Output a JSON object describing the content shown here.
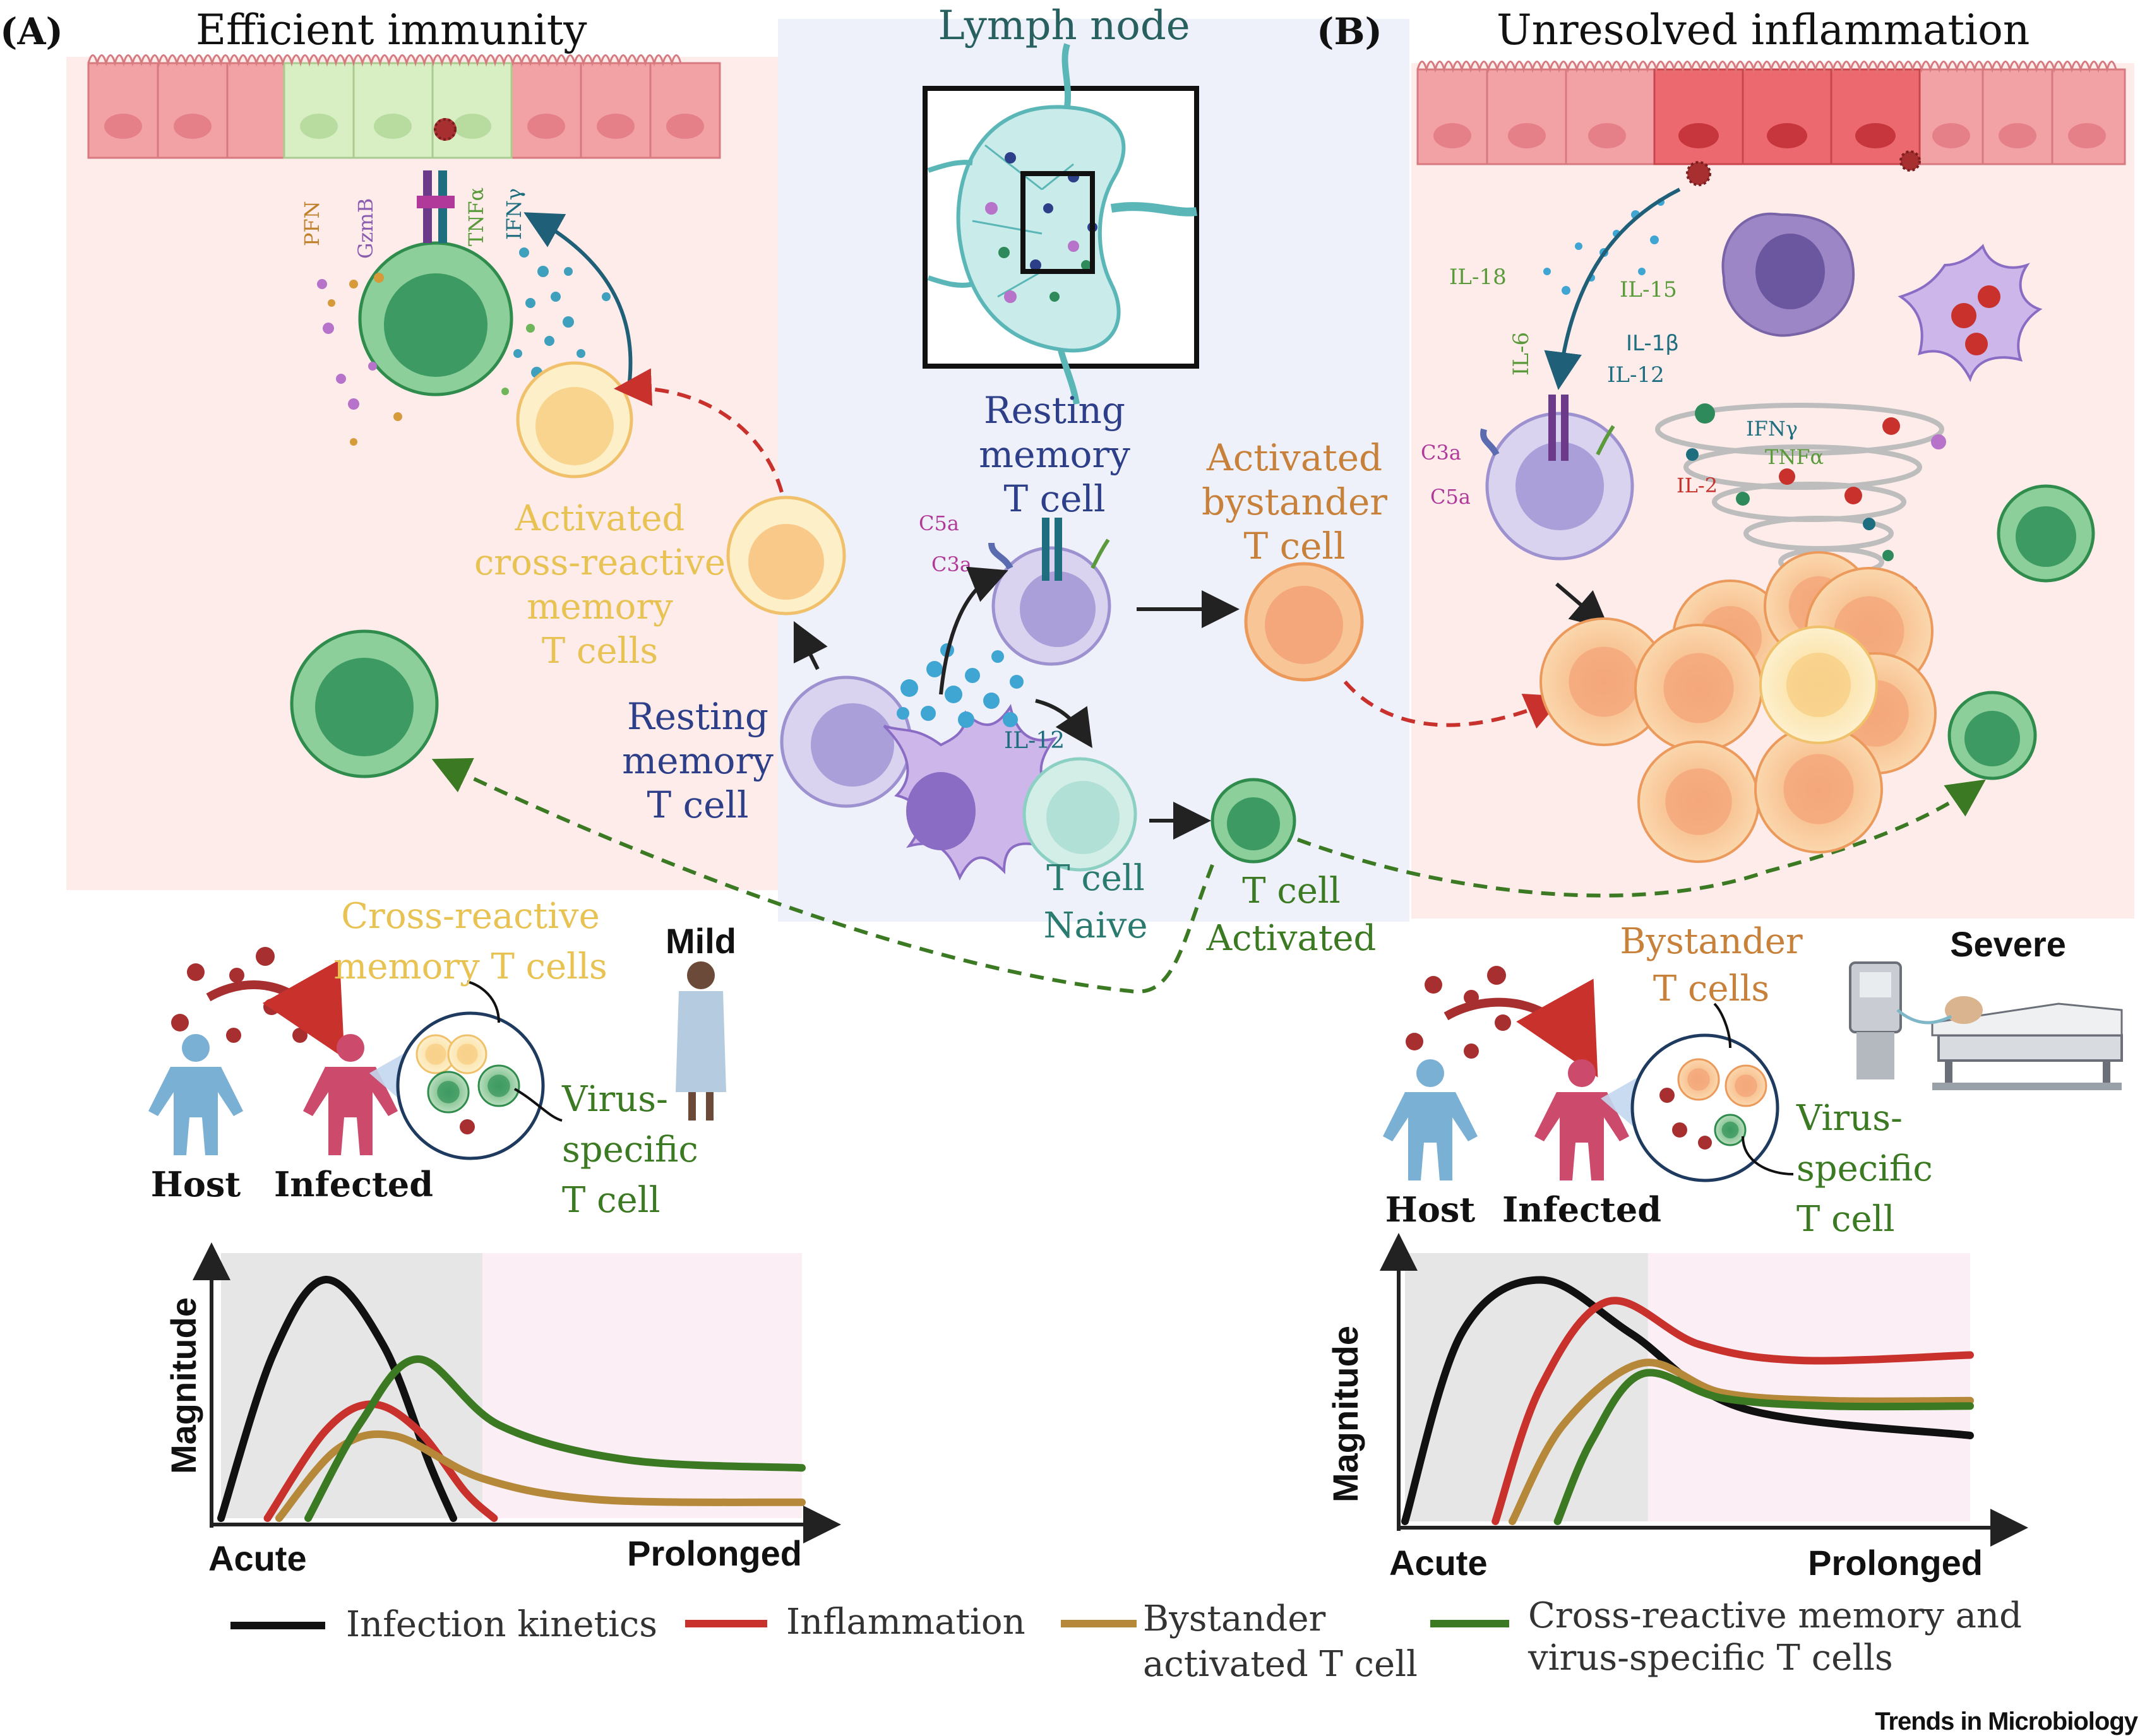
{
  "panels": {
    "a": {
      "letter": "(A)",
      "title": "Efficient immunity",
      "severity": "Mild"
    },
    "b": {
      "letter": "(B)",
      "title": "Unresolved  inflammation",
      "severity": "Severe"
    },
    "lymph_node": "Lymph node"
  },
  "cells": {
    "resting_memory_center": [
      "Resting",
      "memory",
      "T cell"
    ],
    "resting_memory_left": [
      "Resting",
      "memory",
      "T cell"
    ],
    "activated_bystander": [
      "Activated",
      "bystander",
      "T cell"
    ],
    "cross_reactive": [
      "Activated",
      "cross-reactive",
      "memory",
      "T cells"
    ],
    "naive": [
      "T cell",
      "Naive"
    ],
    "activated": [
      "T cell",
      "Activated"
    ]
  },
  "molecules": {
    "c5a": "C5a",
    "c3a": "C3a",
    "il12": "IL-12",
    "pfn": "PFN",
    "gzmb": "GzmB",
    "tnfa": "TNFα",
    "ifng": "IFNγ",
    "il18": "IL-18",
    "il15": "IL-15",
    "il6": "IL-6",
    "il1b": "IL-1β",
    "il12b": "IL-12",
    "ifng_b": "IFNγ",
    "tnfa_b": "TNFα",
    "il2": "IL-2",
    "c3a_b": "C3a",
    "c5a_b": "C5a"
  },
  "bottom_a": {
    "cross_reactive": [
      "Cross-reactive",
      "memory T cells"
    ],
    "virus_specific": [
      "Virus-",
      "specific",
      "T cell"
    ],
    "host": "Host",
    "infected": "Infected"
  },
  "bottom_b": {
    "bystander": [
      "Bystander",
      "T cells"
    ],
    "virus_specific": [
      "Virus-",
      "specific",
      "T cell"
    ],
    "host": "Host",
    "infected": "Infected"
  },
  "chart_data": [
    {
      "type": "line",
      "panel": "A",
      "ylabel": "Magnitude",
      "x_start_label": "Acute",
      "x_end_label": "Prolonged",
      "xlim": [
        0,
        10
      ],
      "ylim": [
        0,
        10
      ],
      "phases": [
        {
          "name": "acute",
          "range": [
            0,
            4.5
          ],
          "color": "#e6e6e6"
        },
        {
          "name": "prolonged",
          "range": [
            4.5,
            10
          ],
          "color": "#fceef5"
        }
      ],
      "series": [
        {
          "name": "Infection kinetics",
          "color": "#111111",
          "x": [
            0,
            0.9,
            1.8,
            2.8,
            3.6,
            4.0
          ],
          "y": [
            0,
            6.2,
            9.0,
            6.5,
            2.0,
            0
          ]
        },
        {
          "name": "Inflammation",
          "color": "#c8312c",
          "x": [
            0.8,
            1.8,
            2.6,
            3.4,
            4.2,
            4.7
          ],
          "y": [
            0,
            3.3,
            4.3,
            3.3,
            1.0,
            0
          ]
        },
        {
          "name": "Bystander activated T cell",
          "color": "#b5883a",
          "x": [
            1.0,
            2.0,
            3.0,
            4.5,
            6.5,
            10.0
          ],
          "y": [
            0,
            2.6,
            3.1,
            1.5,
            0.7,
            0.6
          ]
        },
        {
          "name": "Cross-reactive memory and virus-specific T cells",
          "color": "#3b7a22",
          "x": [
            1.5,
            2.4,
            3.4,
            4.8,
            7.0,
            10.0
          ],
          "y": [
            0,
            3.6,
            6.0,
            3.5,
            2.2,
            1.9
          ]
        }
      ]
    },
    {
      "type": "line",
      "panel": "B",
      "ylabel": "Magnitude",
      "x_start_label": "Acute",
      "x_end_label": "Prolonged",
      "xlim": [
        0,
        10
      ],
      "ylim": [
        0,
        10
      ],
      "phases": [
        {
          "name": "acute",
          "range": [
            0,
            4.3
          ],
          "color": "#e6e6e6"
        },
        {
          "name": "prolonged",
          "range": [
            4.3,
            10
          ],
          "color": "#fceef5"
        }
      ],
      "series": [
        {
          "name": "Infection kinetics",
          "color": "#111111",
          "x": [
            0,
            1.0,
            2.4,
            4.0,
            6.0,
            10.0
          ],
          "y": [
            0,
            7.0,
            9.0,
            7.0,
            4.2,
            3.2
          ]
        },
        {
          "name": "Inflammation",
          "color": "#c8312c",
          "x": [
            1.6,
            2.4,
            3.6,
            5.2,
            7.0,
            10.0
          ],
          "y": [
            0,
            5.0,
            8.2,
            6.6,
            6.0,
            6.2
          ]
        },
        {
          "name": "Bystander activated T cell",
          "color": "#b5883a",
          "x": [
            1.9,
            2.8,
            4.2,
            5.6,
            7.5,
            10.0
          ],
          "y": [
            0,
            3.6,
            5.9,
            4.8,
            4.5,
            4.5
          ]
        },
        {
          "name": "Cross-reactive memory and virus-specific T cells",
          "color": "#3b7a22",
          "x": [
            2.7,
            3.3,
            4.2,
            5.6,
            7.5,
            10.0
          ],
          "y": [
            0,
            3.0,
            5.5,
            4.6,
            4.3,
            4.3
          ]
        }
      ]
    }
  ],
  "legend": {
    "infection": "Infection kinetics",
    "inflammation": "Inflammation",
    "bystander": [
      "Bystander",
      "activated T cell"
    ],
    "cross_reactive": [
      "Cross-reactive memory and",
      "virus-specific T cells"
    ]
  },
  "credit": "Trends in Microbiology"
}
